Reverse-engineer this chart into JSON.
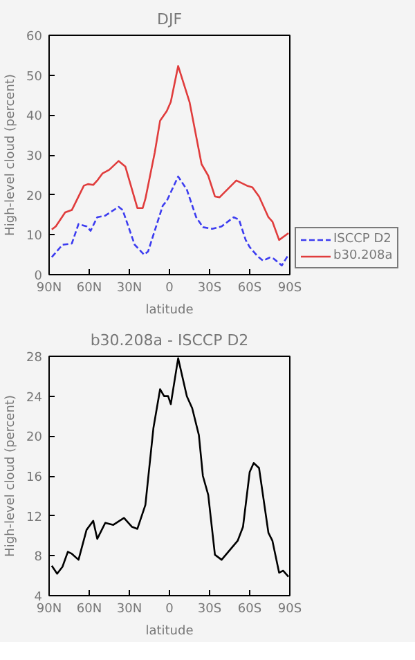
{
  "chart_data": [
    {
      "type": "line",
      "title": "DJF",
      "xlabel": "latitude",
      "ylabel": "High-level cloud (percent)",
      "xlim": [
        90,
        -90
      ],
      "xticks": [
        {
          "value": 90,
          "label": "90N"
        },
        {
          "value": 60,
          "label": "60N"
        },
        {
          "value": 30,
          "label": "30N"
        },
        {
          "value": 0,
          "label": "0"
        },
        {
          "value": -30,
          "label": "30S"
        },
        {
          "value": -60,
          "label": "60S"
        },
        {
          "value": -90,
          "label": "90S"
        }
      ],
      "ylim": [
        0,
        60
      ],
      "yticks": [
        0,
        10,
        20,
        30,
        40,
        50,
        60
      ],
      "grid": false,
      "legend": "right",
      "series": [
        {
          "name": "ISCCP D2",
          "color": "#3c3cf0",
          "line_style": "dashed",
          "x": [
            88,
            80,
            73,
            68,
            62,
            59,
            54,
            48,
            38,
            35,
            26,
            19,
            16,
            5,
            2,
            -6.5,
            -13,
            -20,
            -25,
            -32,
            -39,
            -48,
            -52,
            -57,
            -60,
            -66,
            -70,
            -75,
            -78,
            -84,
            -89
          ],
          "values": [
            4.4,
            7.5,
            7.8,
            12.7,
            12.1,
            11,
            14.4,
            14.8,
            17,
            16.2,
            7.5,
            5,
            5.8,
            17.3,
            18.5,
            24.6,
            21.3,
            14.4,
            11.9,
            11.5,
            12.1,
            14.4,
            13.8,
            8.7,
            6.9,
            4.6,
            3.5,
            4.3,
            4,
            2.3,
            5
          ]
        },
        {
          "name": "b30.208a",
          "color": "#e03c3c",
          "line_style": "solid",
          "x": [
            88,
            85,
            78,
            73,
            64,
            61,
            57,
            54,
            50,
            45,
            38,
            33,
            24,
            20,
            18,
            11,
            7,
            2,
            -1,
            -6.5,
            -15,
            -24,
            -29,
            -34,
            -37.5,
            -50,
            -58,
            -62,
            -67,
            -74,
            -77,
            -82,
            -89
          ],
          "values": [
            11.3,
            12.1,
            15.6,
            16.2,
            22.3,
            22.7,
            22.5,
            23.6,
            25.4,
            26.3,
            28.5,
            27.1,
            16.7,
            16.7,
            19,
            30.6,
            38.6,
            41,
            43.3,
            52.3,
            43.3,
            27.7,
            24.8,
            19.6,
            19.4,
            23.6,
            22.3,
            21.9,
            19.6,
            14.4,
            13.3,
            8.7,
            10.4
          ]
        }
      ]
    },
    {
      "type": "line",
      "title": "b30.208a - ISCCP D2",
      "xlabel": "latitude",
      "ylabel": "High-level cloud (percent)",
      "xlim": [
        90,
        -90
      ],
      "xticks": [
        {
          "value": 90,
          "label": "90N"
        },
        {
          "value": 60,
          "label": "60N"
        },
        {
          "value": 30,
          "label": "30N"
        },
        {
          "value": 0,
          "label": "0"
        },
        {
          "value": -30,
          "label": "30S"
        },
        {
          "value": -60,
          "label": "60S"
        },
        {
          "value": -90,
          "label": "90S"
        }
      ],
      "ylim": [
        4,
        28
      ],
      "yticks": [
        4,
        8,
        12,
        16,
        20,
        24,
        28
      ],
      "grid": false,
      "series": [
        {
          "color": "#000000",
          "line_style": "solid",
          "x": [
            88,
            84,
            80,
            76,
            73,
            68,
            62,
            57,
            54,
            48,
            42,
            34,
            28,
            24,
            18,
            12,
            7,
            4,
            1,
            -1,
            -6.5,
            -13,
            -17,
            -22,
            -25,
            -29,
            -34,
            -39,
            -51,
            -55,
            -60,
            -63,
            -67,
            -74,
            -77,
            -82,
            -85,
            -89
          ],
          "values": [
            7.0,
            6.2,
            6.9,
            8.4,
            8.2,
            7.6,
            10.6,
            11.5,
            9.7,
            11.3,
            11.1,
            11.8,
            10.9,
            10.7,
            13.1,
            20.8,
            24.7,
            24.0,
            24.0,
            23.2,
            27.8,
            24.0,
            22.8,
            20.1,
            16,
            14.1,
            8.1,
            7.6,
            9.5,
            10.9,
            16.4,
            17.3,
            16.8,
            10.3,
            9.5,
            6.3,
            6.5,
            5.9
          ]
        }
      ]
    }
  ]
}
